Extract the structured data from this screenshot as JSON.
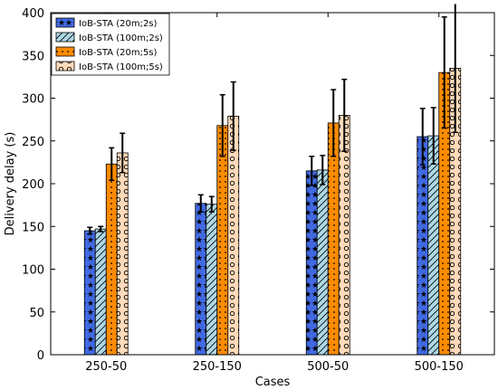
{
  "chart_data": {
    "type": "bar",
    "xlabel": "Cases",
    "ylabel": "Delivery delay (s)",
    "categories": [
      "250-50",
      "250-150",
      "500-50",
      "500-150"
    ],
    "ylim": [
      0,
      400
    ],
    "yticks": [
      0,
      50,
      100,
      150,
      200,
      250,
      300,
      350,
      400
    ],
    "grid": false,
    "legend_position": "top-left",
    "series": [
      {
        "name": "IoB-STA (20m;2s)",
        "color": "#4169e1",
        "pattern": "stars",
        "values": [
          145,
          177,
          215,
          255
        ],
        "errors": [
          4,
          10,
          17,
          33
        ]
      },
      {
        "name": "IoB-STA (100m;2s)",
        "color": "#add8e6",
        "pattern": "diagonal-hatch",
        "values": [
          147,
          176,
          216,
          256
        ],
        "errors": [
          3,
          9,
          17,
          33
        ]
      },
      {
        "name": "IoB-STA (20m;5s)",
        "color": "#ff8c00",
        "pattern": "dots",
        "values": [
          223,
          268,
          271,
          330
        ],
        "errors": [
          19,
          36,
          39,
          65
        ]
      },
      {
        "name": "IoB-STA (100m;5s)",
        "color": "#ffdab9",
        "pattern": "circles",
        "values": [
          236,
          279,
          280,
          335
        ],
        "errors": [
          23,
          40,
          42,
          75
        ]
      }
    ]
  }
}
